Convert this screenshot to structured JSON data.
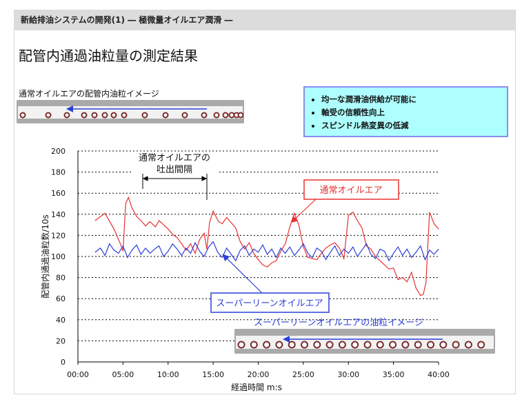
{
  "header": {
    "title": "新給排油システムの開発(1) ― 極微量オイルエア潤滑 ―"
  },
  "page_title": "配管内通過油粒量の測定結果",
  "top_image": {
    "caption": "通常オイルエアの配管内油粒イメージ"
  },
  "bottom_image": {
    "caption": "スーパーリーンオイルエアの油粒イメージ"
  },
  "benefits": [
    "均一な潤滑油供給が可能に",
    "軸受の信頼性向上",
    "スピンドル熱変異の低減"
  ],
  "annotations": {
    "interval_line1": "通常オイルエアの",
    "interval_line2": "吐出間隔"
  },
  "colors": {
    "normal": "#e83030",
    "superlean": "#2a3fd6",
    "arrow": "#2a3fd6",
    "droplet": "#7a2a2a"
  },
  "chart_data": {
    "type": "line",
    "title": "",
    "xlabel": "経過時間 m:s",
    "ylabel": "配管内通過油粒数/10s",
    "ylim": [
      0,
      200
    ],
    "xlim": [
      0,
      40
    ],
    "yticks": [
      "0",
      "20",
      "40",
      "60",
      "80",
      "100",
      "120",
      "140",
      "160",
      "180",
      "200"
    ],
    "xticks": [
      "00:00",
      "05:00",
      "10:00",
      "15:00",
      "20:00",
      "25:00",
      "30:00",
      "35:00",
      "40:00"
    ],
    "series": [
      {
        "name": "通常オイルエア",
        "x": [
          1.9,
          3.0,
          4.0,
          4.7,
          5.0,
          5.3,
          5.6,
          6.0,
          6.5,
          7.0,
          7.5,
          8.0,
          8.6,
          9.0,
          9.5,
          10.0,
          10.5,
          11.0,
          11.5,
          12.0,
          12.5,
          13.0,
          13.5,
          14.0,
          14.3,
          14.6,
          15.0,
          15.3,
          15.6,
          16.0,
          16.5,
          17.0,
          17.5,
          18.0,
          18.5,
          19.0,
          19.5,
          20.0,
          20.5,
          21.0,
          21.5,
          22.0,
          22.5,
          23.0,
          23.5,
          24.0,
          24.5,
          25.0,
          25.5,
          26.0,
          26.5,
          27.0,
          27.5,
          28.0,
          28.5,
          29.0,
          29.5,
          30.0,
          30.5,
          31.0,
          31.5,
          32.0,
          32.5,
          33.0,
          33.5,
          34.0,
          34.5,
          35.0,
          35.5,
          36.0,
          36.5,
          37.0,
          37.5,
          38.0,
          38.3,
          38.6,
          39.0,
          39.5,
          40.0
        ],
        "values": [
          134,
          141,
          126,
          112,
          105,
          150,
          156,
          146,
          138,
          134,
          129,
          133,
          128,
          134,
          130,
          126,
          121,
          118,
          112,
          106,
          112,
          103,
          116,
          122,
          107,
          132,
          143,
          138,
          133,
          131,
          137,
          132,
          127,
          114,
          107,
          113,
          103,
          97,
          92,
          90,
          94,
          96,
          105,
          112,
          128,
          141,
          130,
          109,
          99,
          98,
          97,
          103,
          108,
          111,
          113,
          108,
          98,
          139,
          142,
          134,
          127,
          110,
          107,
          100,
          96,
          92,
          88,
          89,
          78,
          80,
          76,
          85,
          70,
          63,
          64,
          75,
          142,
          131,
          126
        ]
      },
      {
        "name": "スーパーリーンオイルエア",
        "x": [
          1.9,
          2.5,
          3.0,
          3.5,
          4.0,
          4.5,
          5.0,
          5.5,
          6.0,
          6.5,
          7.0,
          7.5,
          8.0,
          8.5,
          9.0,
          9.5,
          10.0,
          10.5,
          11.0,
          11.5,
          12.0,
          12.5,
          13.0,
          13.5,
          14.0,
          14.5,
          15.0,
          15.5,
          16.0,
          16.5,
          17.0,
          17.5,
          18.0,
          18.5,
          19.0,
          19.5,
          20.0,
          20.5,
          21.0,
          21.5,
          22.0,
          22.5,
          23.0,
          23.5,
          24.0,
          24.5,
          25.0,
          25.5,
          26.0,
          26.5,
          27.0,
          27.5,
          28.0,
          28.5,
          29.0,
          29.5,
          30.0,
          30.5,
          31.0,
          31.5,
          32.0,
          32.5,
          33.0,
          33.5,
          34.0,
          34.5,
          35.0,
          35.5,
          36.0,
          36.5,
          37.0,
          37.5,
          38.0,
          38.5,
          39.0,
          39.5,
          40.0
        ],
        "values": [
          104,
          108,
          101,
          112,
          106,
          103,
          110,
          99,
          106,
          111,
          102,
          108,
          103,
          107,
          110,
          100,
          105,
          112,
          107,
          101,
          108,
          103,
          113,
          105,
          100,
          109,
          114,
          104,
          99,
          108,
          102,
          96,
          106,
          110,
          101,
          107,
          104,
          111,
          102,
          107,
          99,
          108,
          103,
          109,
          101,
          106,
          112,
          103,
          99,
          108,
          105,
          97,
          104,
          110,
          101,
          107,
          103,
          109,
          100,
          106,
          112,
          102,
          98,
          107,
          105,
          96,
          103,
          109,
          101,
          107,
          99,
          104,
          110,
          97,
          106,
          102,
          107
        ]
      }
    ]
  }
}
